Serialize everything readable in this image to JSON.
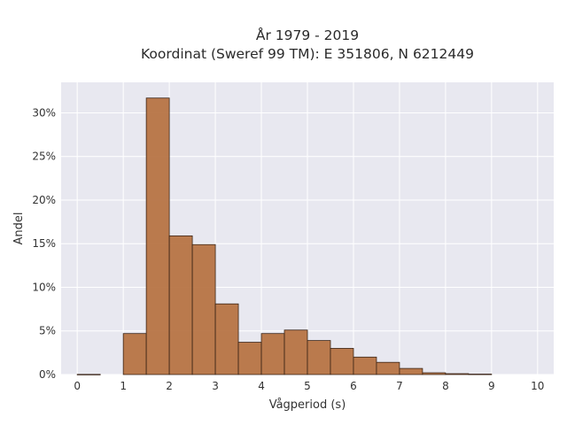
{
  "chart_data": {
    "type": "bar",
    "title": "År 1979 - 2019",
    "subtitle": "Koordinat (Sweref 99 TM): E 351806, N 6212449",
    "xlabel": "Vågperiod (s)",
    "ylabel": "Andel",
    "bin_width": 0.5,
    "bins": [
      0,
      0.5,
      1,
      1.5,
      2,
      2.5,
      3,
      3.5,
      4,
      4.5,
      5,
      5.5,
      6,
      6.5,
      7,
      7.5,
      8,
      8.5,
      9,
      9.5
    ],
    "values": [
      0.02,
      0.0,
      4.7,
      31.7,
      15.9,
      14.9,
      8.1,
      3.7,
      4.7,
      5.1,
      3.9,
      3.0,
      2.0,
      1.4,
      0.7,
      0.2,
      0.1,
      0.05,
      0.0,
      0.0
    ],
    "xlim": [
      -0.35,
      10.35
    ],
    "ylim": [
      0,
      33.5
    ],
    "xticks": [
      0,
      1,
      2,
      3,
      4,
      5,
      6,
      7,
      8,
      9,
      10
    ],
    "xtick_labels": [
      "0",
      "1",
      "2",
      "3",
      "4",
      "5",
      "6",
      "7",
      "8",
      "9",
      "10"
    ],
    "yticks": [
      0,
      5,
      10,
      15,
      20,
      25,
      30
    ],
    "ytick_labels": [
      "0%",
      "5%",
      "10%",
      "15%",
      "20%",
      "25%",
      "30%"
    ],
    "grid": true,
    "colors": {
      "bar_fill": "#b5703f",
      "bar_edge": "#3a2416",
      "plot_bg": "#e8e8f0",
      "grid": "#ffffff"
    }
  }
}
